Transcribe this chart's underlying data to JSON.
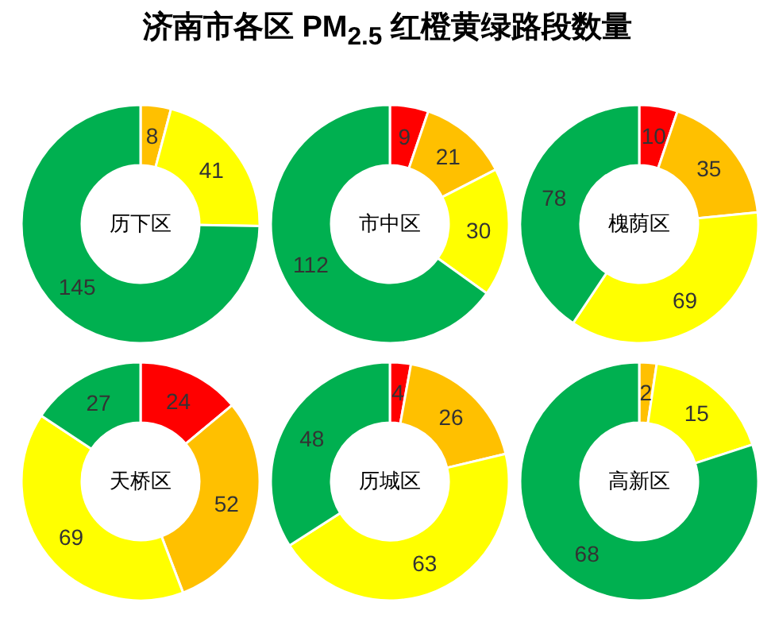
{
  "chart_data": [
    {
      "type": "other",
      "title": "济南市各区 PM$_{2.5}$ 红橙黄绿路段数量"
    },
    {
      "type": "donut",
      "title": "历下区",
      "categories": [
        null,
        null,
        null
      ],
      "values": [
        8,
        41,
        145
      ],
      "colors": [
        "#ffc000",
        "#ffff00",
        "#00b050"
      ],
      "data_labels": true
    },
    {
      "type": "donut",
      "title": "市中区",
      "categories": [
        null,
        null,
        null,
        null
      ],
      "values": [
        9,
        21,
        30,
        112
      ],
      "colors": [
        "#ff0000",
        "#ffc000",
        "#ffff00",
        "#00b050"
      ],
      "data_labels": true
    },
    {
      "type": "donut",
      "title": "槐荫区",
      "categories": [
        null,
        null,
        null,
        null
      ],
      "values": [
        10,
        35,
        69,
        78
      ],
      "colors": [
        "#ff0000",
        "#ffc000",
        "#ffff00",
        "#00b050"
      ],
      "data_labels": true
    },
    {
      "type": "donut",
      "title": "天桥区",
      "categories": [
        null,
        null,
        null,
        null
      ],
      "values": [
        24,
        52,
        69,
        27
      ],
      "colors": [
        "#ff0000",
        "#ffc000",
        "#ffff00",
        "#00b050"
      ],
      "data_labels": true
    },
    {
      "type": "donut",
      "title": "历城区",
      "categories": [
        null,
        null,
        null,
        null
      ],
      "values": [
        4,
        26,
        63,
        48
      ],
      "colors": [
        "#ff0000",
        "#ffc000",
        "#ffff00",
        "#00b050"
      ],
      "data_labels": true
    },
    {
      "type": "donut",
      "title": "高新区",
      "categories": [
        null,
        null,
        null
      ],
      "values": [
        2,
        15,
        68
      ],
      "colors": [
        "#ffc000",
        "#ffff00",
        "#00b050"
      ],
      "data_labels": true
    }
  ]
}
